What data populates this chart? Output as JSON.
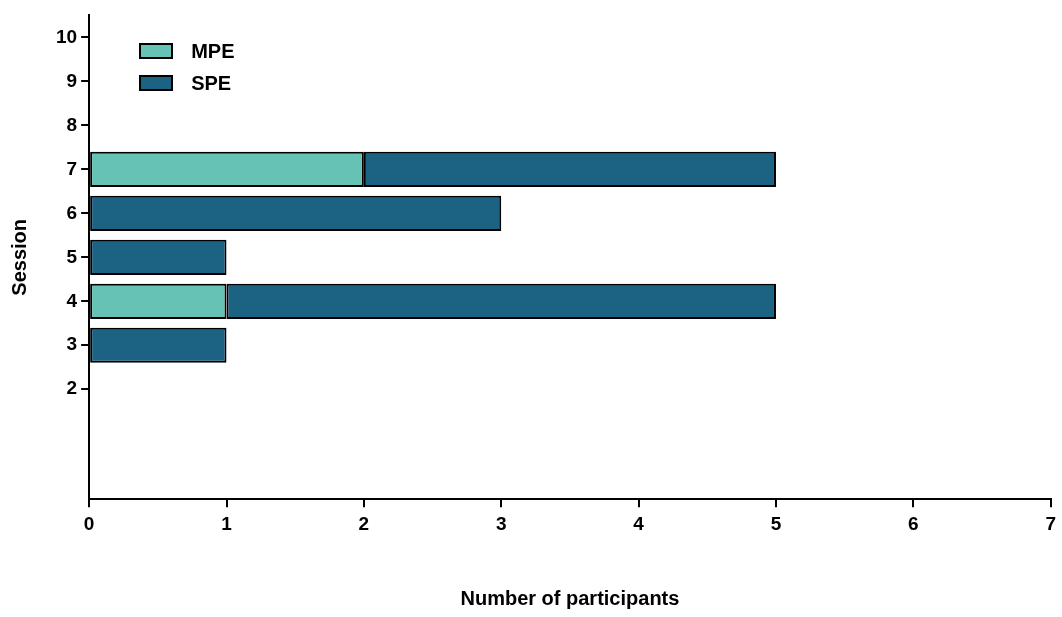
{
  "chart_data": {
    "type": "bar",
    "orientation": "horizontal",
    "stacked": true,
    "categories": [
      "10",
      "9",
      "8",
      "7",
      "6",
      "5",
      "4",
      "3",
      "2",
      null,
      null
    ],
    "series": [
      {
        "name": "MPE",
        "color": "#66c2b5",
        "values": [
          null,
          null,
          null,
          2,
          null,
          null,
          1,
          null,
          null,
          null,
          null
        ]
      },
      {
        "name": "SPE",
        "color": "#1c6282",
        "values": [
          null,
          null,
          null,
          3,
          3,
          1,
          4,
          1,
          null,
          null,
          null
        ]
      }
    ],
    "xlim": [
      0,
      7
    ],
    "xticks": [
      0,
      1,
      2,
      3,
      4,
      5,
      6,
      7
    ],
    "xlabel": "Number of participants",
    "ylabel": "Session",
    "grid": false,
    "legend": "top left"
  }
}
